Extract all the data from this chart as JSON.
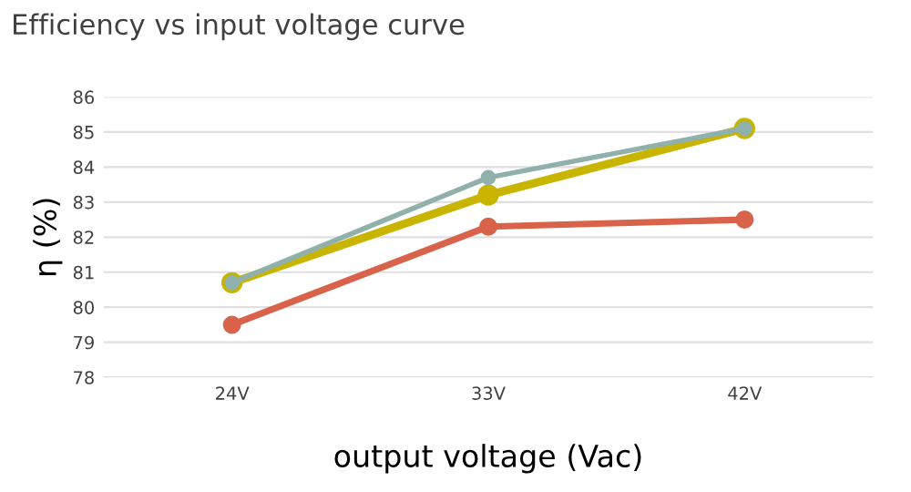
{
  "chart_data": {
    "type": "line",
    "title": "Efficiency vs input voltage curve",
    "xlabel": "output voltage (Vac)",
    "ylabel": "η (%)",
    "categories": [
      "24V",
      "33V",
      "42V"
    ],
    "series": [
      {
        "color": "#c9b400",
        "values": [
          80.7,
          83.2,
          85.1
        ]
      },
      {
        "color": "#d9634a",
        "values": [
          79.5,
          82.3,
          82.5
        ]
      },
      {
        "color": "#8fb0ab",
        "values": [
          80.7,
          83.7,
          85.1
        ]
      }
    ],
    "ylim": [
      78,
      86
    ],
    "yticks": [
      78,
      79,
      80,
      81,
      82,
      83,
      84,
      85,
      86
    ],
    "grid": "y",
    "marker": "circle",
    "line_style": "solid"
  }
}
